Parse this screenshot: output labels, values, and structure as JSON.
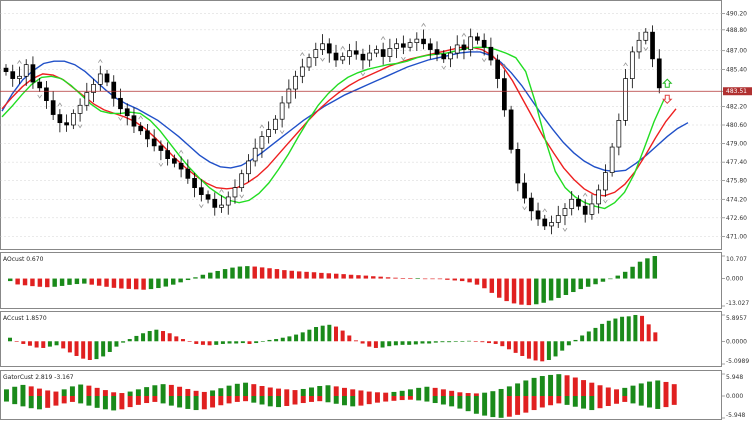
{
  "price_axis": {
    "labels": [
      "490.20",
      "488.80",
      "487.00",
      "485.40",
      "483.51",
      "482.20",
      "480.60",
      "479.00",
      "477.40",
      "475.80",
      "474.20",
      "472.60",
      "471.00"
    ],
    "values": [
      490.2,
      488.8,
      487.0,
      485.4,
      483.51,
      482.2,
      480.6,
      479.0,
      477.4,
      475.8,
      474.2,
      472.6,
      471.0
    ],
    "range": [
      470.0,
      491.2
    ],
    "current_price_label": "483.51",
    "current_price": 483.51
  },
  "panes": [
    {
      "title": "AOcust 0.670",
      "axis_labels": [
        "10.707",
        "0.000",
        "-13.027"
      ],
      "axis_values": [
        10.707,
        0,
        -13.027
      ]
    },
    {
      "title": "ACcust 1.8570",
      "axis_labels": [
        "5.8957",
        "0.0000",
        "-5.0989"
      ],
      "axis_values": [
        5.8957,
        0,
        -5.0989
      ]
    },
    {
      "title": "GatorCust 2.819 -3.167",
      "axis_labels": [
        "5.948",
        "0.000",
        "-5.948"
      ],
      "axis_values": [
        5.948,
        0,
        -5.948
      ]
    }
  ],
  "colors": {
    "up_bar": "#1a8a1a",
    "down_bar": "#e02020",
    "lips": "#22dd22",
    "teeth": "#ee2020",
    "jaw": "#2050c8",
    "grid": "#c8c8c8",
    "current_line": "#b03030",
    "current_tag": "#b03030",
    "arrow_up": "#22bb22",
    "arrow_down": "#e04040",
    "fractal": "#999999"
  },
  "icons": [
    "fractal-arrow-icon",
    "buy-arrow-icon",
    "sell-arrow-icon"
  ],
  "chart_data": {
    "type": "candlestick",
    "y_range": [
      470.0,
      491.2
    ],
    "candles_close": [
      485.2,
      484.6,
      484.8,
      485.8,
      484.3,
      483.8,
      482.7,
      481.5,
      480.8,
      480.6,
      481.6,
      482.3,
      483.4,
      484.1,
      485.0,
      484.3,
      482.9,
      482.0,
      481.4,
      480.5,
      480.1,
      479.4,
      478.8,
      478.4,
      477.7,
      477.3,
      476.8,
      476.0,
      475.2,
      474.6,
      474.2,
      473.5,
      473.7,
      474.4,
      475.2,
      476.4,
      477.5,
      478.6,
      479.6,
      480.2,
      481.1,
      482.5,
      483.7,
      484.8,
      485.6,
      486.4,
      487.1,
      487.6,
      486.8,
      486.2,
      486.5,
      487.0,
      486.7,
      486.2,
      486.8,
      487.1,
      486.5,
      487.2,
      487.6,
      487.3,
      487.7,
      488.0,
      487.6,
      487.1,
      486.7,
      486.3,
      486.8,
      487.5,
      487.1,
      488.2,
      487.9,
      487.3,
      486.2,
      484.6,
      481.9,
      478.5,
      475.6,
      474.3,
      473.2,
      472.5,
      471.9,
      472.2,
      472.8,
      473.4,
      474.2,
      473.6,
      472.9,
      473.8,
      475.0,
      476.5,
      478.7,
      481.0,
      484.6,
      486.9,
      487.9,
      488.6,
      486.3,
      483.8
    ],
    "lips": [
      481.3,
      482.2,
      483.2,
      484.1,
      484.7,
      484.8,
      484.6,
      484.0,
      483.2,
      482.4,
      481.8,
      481.6,
      481.6,
      481.7,
      481.6,
      481.0,
      480.1,
      479.0,
      477.9,
      476.9,
      476.0,
      475.2,
      474.6,
      474.1,
      473.9,
      474.1,
      474.7,
      475.6,
      476.8,
      478.1,
      479.6,
      481.0,
      482.3,
      483.3,
      484.1,
      484.7,
      485.1,
      485.4,
      485.6,
      485.8,
      485.9,
      486.1,
      486.4,
      486.6,
      486.7,
      486.8,
      487.0,
      487.2,
      487.3,
      487.3,
      487.1,
      486.8,
      486.4,
      485.2,
      482.5,
      479.3,
      476.6,
      475.2,
      474.4,
      473.9,
      473.6,
      473.4,
      473.9,
      474.8,
      476.4,
      478.6,
      480.9,
      482.8
    ],
    "teeth": [
      482.0,
      483.0,
      483.9,
      484.6,
      485.0,
      484.9,
      484.5,
      483.8,
      483.1,
      482.4,
      481.9,
      481.6,
      481.3,
      480.9,
      480.3,
      479.5,
      478.6,
      477.7,
      476.9,
      476.2,
      475.6,
      475.2,
      475.1,
      475.2,
      475.6,
      476.2,
      477.0,
      478.0,
      479.0,
      480.0,
      481.0,
      481.9,
      482.7,
      483.4,
      484.0,
      484.5,
      484.9,
      485.3,
      485.7,
      486.0,
      486.3,
      486.5,
      486.7,
      486.9,
      487.1,
      487.3,
      487.3,
      487.1,
      486.6,
      485.7,
      484.4,
      482.8,
      481.2,
      479.6,
      478.2,
      476.9,
      475.9,
      475.1,
      474.6,
      474.5,
      474.8,
      475.5,
      476.6,
      478.0,
      479.5,
      480.9,
      482.0
    ],
    "jaw": [
      481.8,
      483.3,
      484.5,
      485.3,
      485.9,
      486.1,
      486.1,
      485.8,
      485.2,
      484.4,
      483.6,
      482.9,
      482.4,
      482.0,
      481.5,
      481.0,
      480.3,
      479.6,
      478.8,
      478.0,
      477.4,
      477.0,
      476.9,
      477.1,
      477.6,
      478.2,
      478.9,
      479.6,
      480.3,
      481.0,
      481.6,
      482.2,
      482.7,
      483.2,
      483.6,
      484.0,
      484.4,
      484.8,
      485.2,
      485.6,
      485.9,
      486.2,
      486.4,
      486.6,
      486.8,
      486.9,
      486.9,
      486.6,
      486.0,
      485.1,
      484.0,
      482.7,
      481.4,
      480.2,
      479.1,
      478.2,
      477.5,
      477.0,
      476.7,
      476.6,
      476.7,
      477.3,
      478.0,
      478.8,
      479.6,
      480.3,
      480.8
    ],
    "ao": [
      -1.2,
      -2.8,
      -3.2,
      -3.6,
      -3.9,
      -4.1,
      -3.9,
      -3.5,
      -3.0,
      -2.6,
      -2.4,
      -2.9,
      -3.4,
      -3.9,
      -4.4,
      -4.7,
      -4.9,
      -5.1,
      -5.3,
      -5.0,
      -4.5,
      -3.8,
      -2.9,
      -1.8,
      -0.7,
      0.6,
      1.8,
      2.8,
      3.6,
      4.5,
      5.2,
      5.7,
      5.9,
      5.7,
      5.3,
      4.9,
      4.5,
      4.0,
      3.7,
      3.4,
      3.2,
      3.0,
      2.7,
      2.5,
      2.3,
      2.1,
      1.8,
      1.6,
      1.4,
      1.1,
      0.9,
      0.6,
      0.4,
      0.2,
      0.1,
      0.1,
      0.0,
      -0.1,
      -0.3,
      -0.6,
      -0.9,
      -1.2,
      -1.8,
      -2.9,
      -4.6,
      -6.8,
      -9.1,
      -10.7,
      -11.8,
      -12.4,
      -12.6,
      -12.2,
      -11.5,
      -10.4,
      -9.2,
      -7.8,
      -6.4,
      -5.0,
      -3.9,
      -2.7,
      -1.5,
      -0.2,
      1.4,
      3.2,
      5.6,
      8.0,
      9.6,
      10.7
    ],
    "ac": [
      0.8,
      0.0,
      -0.6,
      -1.0,
      -1.4,
      -1.5,
      -1.2,
      -0.9,
      -1.6,
      -2.5,
      -3.3,
      -3.9,
      -4.2,
      -4.0,
      -3.4,
      -2.4,
      -1.2,
      -0.3,
      0.5,
      1.2,
      1.8,
      2.3,
      2.6,
      2.3,
      1.8,
      1.1,
      0.5,
      -0.1,
      -0.6,
      -0.8,
      -0.9,
      -0.8,
      -0.6,
      -0.5,
      -0.5,
      -0.4,
      -0.6,
      -0.4,
      -0.1,
      0.3,
      0.5,
      0.8,
      1.1,
      1.5,
      2.0,
      2.6,
      3.2,
      3.5,
      3.7,
      3.3,
      2.4,
      1.3,
      0.2,
      -0.5,
      -1.2,
      -1.5,
      -1.4,
      -1.1,
      -0.9,
      -0.8,
      -0.8,
      -0.7,
      -0.5,
      -0.5,
      -0.3,
      -0.2,
      -0.2,
      -0.1,
      0.0,
      0.1,
      0.0,
      -0.2,
      -0.4,
      -0.6,
      -1.1,
      -1.8,
      -2.6,
      -3.3,
      -3.9,
      -4.3,
      -4.5,
      -4.2,
      -3.4,
      -2.1,
      -0.9,
      0.3,
      1.3,
      2.2,
      3.0,
      3.9,
      4.6,
      5.1,
      5.5,
      5.6,
      5.9,
      5.7,
      3.8,
      2.0
    ],
    "gator_up": [
      1.8,
      2.5,
      3.0,
      2.6,
      2.0,
      1.5,
      1.2,
      1.8,
      2.6,
      3.1,
      2.8,
      2.2,
      1.6,
      1.0,
      0.8,
      1.2,
      1.8,
      2.4,
      2.9,
      3.2,
      3.0,
      2.5,
      1.9,
      1.4,
      1.1,
      1.5,
      2.1,
      2.8,
      3.3,
      3.6,
      3.2,
      2.7,
      2.3,
      2.0,
      1.8,
      1.6,
      1.9,
      2.3,
      2.7,
      2.9,
      2.6,
      2.2,
      1.8,
      1.5,
      1.2,
      1.0,
      0.9,
      1.1,
      1.4,
      1.8,
      2.2,
      2.5,
      2.2,
      1.8,
      1.4,
      1.0,
      0.8,
      0.7,
      0.9,
      1.3,
      1.9,
      2.6,
      3.4,
      4.2,
      4.9,
      5.4,
      5.7,
      5.9,
      5.6,
      5.0,
      4.3,
      3.6,
      2.9,
      2.3,
      1.8,
      2.2,
      2.8,
      3.4,
      3.9,
      4.2,
      3.8,
      3.2
    ],
    "gator_down": [
      -1.5,
      -2.2,
      -2.8,
      -3.3,
      -3.6,
      -3.2,
      -2.6,
      -2.0,
      -1.6,
      -2.0,
      -2.6,
      -3.2,
      -3.6,
      -3.9,
      -3.6,
      -3.0,
      -2.4,
      -1.9,
      -1.6,
      -2.0,
      -2.6,
      -3.1,
      -3.5,
      -3.8,
      -3.6,
      -3.1,
      -2.5,
      -2.0,
      -1.6,
      -1.4,
      -1.8,
      -2.3,
      -2.8,
      -3.0,
      -2.7,
      -2.3,
      -1.9,
      -1.6,
      -1.4,
      -1.7,
      -2.1,
      -2.5,
      -2.8,
      -2.6,
      -2.2,
      -1.8,
      -1.5,
      -1.3,
      -1.1,
      -1.0,
      -1.2,
      -1.5,
      -1.9,
      -2.3,
      -2.8,
      -3.4,
      -4.1,
      -4.8,
      -5.3,
      -5.7,
      -5.9,
      -5.6,
      -5.1,
      -4.5,
      -3.8,
      -3.1,
      -2.5,
      -2.0,
      -2.4,
      -2.9,
      -3.4,
      -3.8,
      -3.3,
      -2.7,
      -2.1,
      -1.6,
      -2.0,
      -2.6,
      -3.1,
      -3.5,
      -3.0,
      -2.4
    ]
  }
}
